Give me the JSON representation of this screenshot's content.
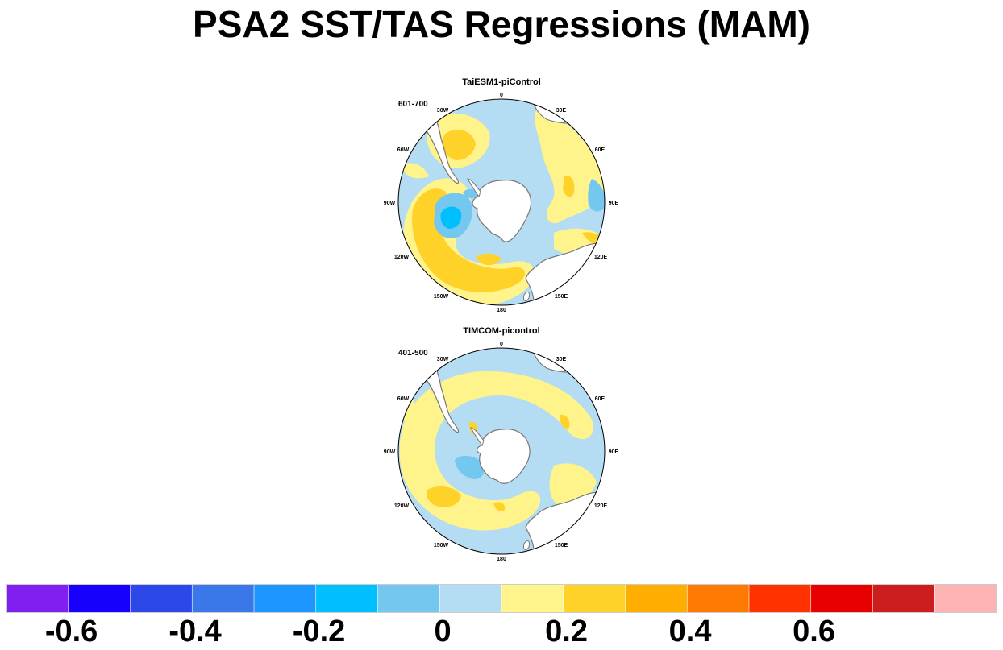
{
  "title": "PSA2 SST/TAS Regressions (MAM)",
  "panels": [
    {
      "title": "TaiESM1-piControl",
      "years": "601-700",
      "lon_labels": [
        "0",
        "30E",
        "60E",
        "90E",
        "120E",
        "150E",
        "180",
        "150W",
        "120W",
        "90W",
        "60W",
        "30W"
      ]
    },
    {
      "title": "TIMCOM-picontrol",
      "years": "401-500",
      "lon_labels": [
        "0",
        "30E",
        "60E",
        "90E",
        "120E",
        "150E",
        "180",
        "150W",
        "120W",
        "90W",
        "60W",
        "30W"
      ]
    }
  ],
  "colorbar": {
    "colors": [
      "#8020f0",
      "#1800ff",
      "#2c48e8",
      "#3a78ea",
      "#1e96ff",
      "#00bfff",
      "#74c8f0",
      "#b4dcf2",
      "#fff48c",
      "#ffd22a",
      "#ffae00",
      "#ff7a00",
      "#ff3200",
      "#e60000",
      "#cc1e1e",
      "#ffb4b4"
    ],
    "labels": [
      "-0.6",
      "-0.4",
      "-0.2",
      "0",
      "0.2",
      "0.4",
      "0.6"
    ]
  },
  "palette": {
    "land": "#ffffff",
    "coast": "#777777",
    "neutral_negative": "#b4dcf2",
    "neutral_positive": "#fff48c",
    "moderate_positive": "#ffd22a",
    "moderate_negative": "#74c8f0",
    "strong_negative": "#00bfff"
  }
}
